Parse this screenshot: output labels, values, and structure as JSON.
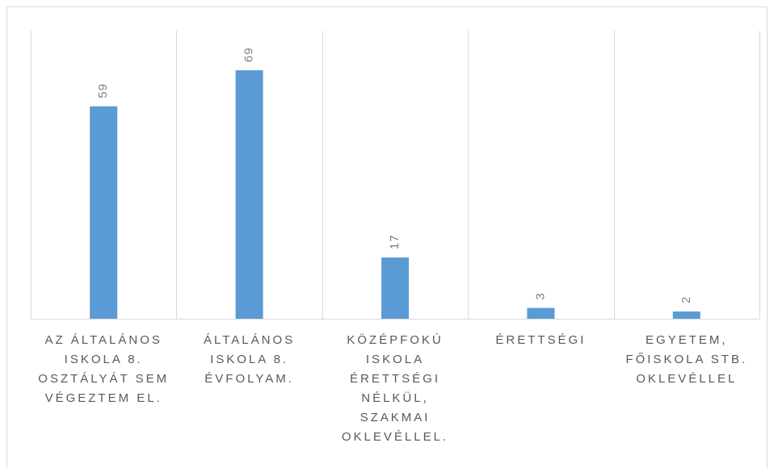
{
  "chart_data": {
    "type": "bar",
    "categories": [
      "AZ ÁLTALÁNOS ISKOLA 8. OSZTÁLYÁT SEM VÉGEZTEM EL.",
      "ÁLTALÁNOS ISKOLA 8. ÉVFOLYAM.",
      "KÖZÉPFOKÚ ISKOLA ÉRETTSÉGI NÉLKÜL, SZAKMAI OKLEVÉLLEL.",
      "ÉRETTSÉGI",
      "EGYETEM, FŐISKOLA STB. OKLEVÉLLEL"
    ],
    "values": [
      59,
      69,
      17,
      3,
      2
    ],
    "color": "#5b9bd5",
    "ylim": [
      0,
      80
    ]
  }
}
